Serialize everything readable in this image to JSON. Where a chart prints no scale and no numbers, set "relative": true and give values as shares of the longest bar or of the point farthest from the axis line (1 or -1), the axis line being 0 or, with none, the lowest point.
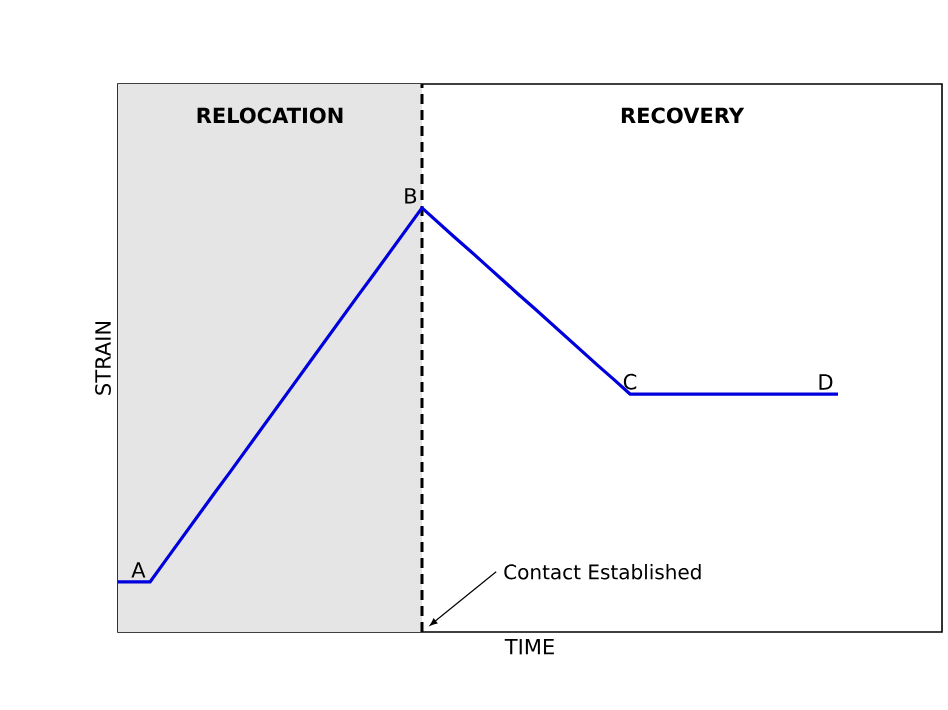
{
  "chart_data": {
    "type": "line",
    "xlabel": "TIME",
    "ylabel": "STRAIN",
    "relative": true,
    "tick_labels": false,
    "marker": "none",
    "line_style": "solid",
    "categories": [
      null,
      null,
      null,
      null,
      null,
      null,
      null,
      null,
      null,
      null,
      null,
      null,
      null,
      null,
      null,
      null,
      null,
      null,
      null,
      null,
      null,
      null,
      null,
      null,
      null,
      null,
      null,
      null,
      null,
      null,
      null,
      null,
      null,
      null,
      null,
      null,
      null,
      null,
      null,
      null,
      null,
      null,
      null,
      null,
      null,
      null
    ],
    "series": [
      {
        "color": "#0000dd",
        "values": [
          0.118,
          0.118,
          0.118,
          0.17,
          0.222,
          0.274,
          0.326,
          0.377,
          0.429,
          0.481,
          0.533,
          0.585,
          0.637,
          0.689,
          0.741,
          0.793,
          0.844,
          0.896,
          0.948,
          1,
          0.966,
          0.932,
          0.899,
          0.865,
          0.831,
          0.797,
          0.764,
          0.73,
          0.696,
          0.662,
          0.628,
          0.595,
          0.561,
          0.561,
          0.561,
          0.561,
          0.561,
          0.561,
          0.561,
          0.561,
          0.561,
          0.561,
          0.561,
          0.561,
          0.561,
          0.561
        ]
      }
    ],
    "annotations": [
      "A",
      "B",
      "C",
      "D",
      "RELOCATION",
      "RECOVERY",
      "Contact Established"
    ]
  }
}
